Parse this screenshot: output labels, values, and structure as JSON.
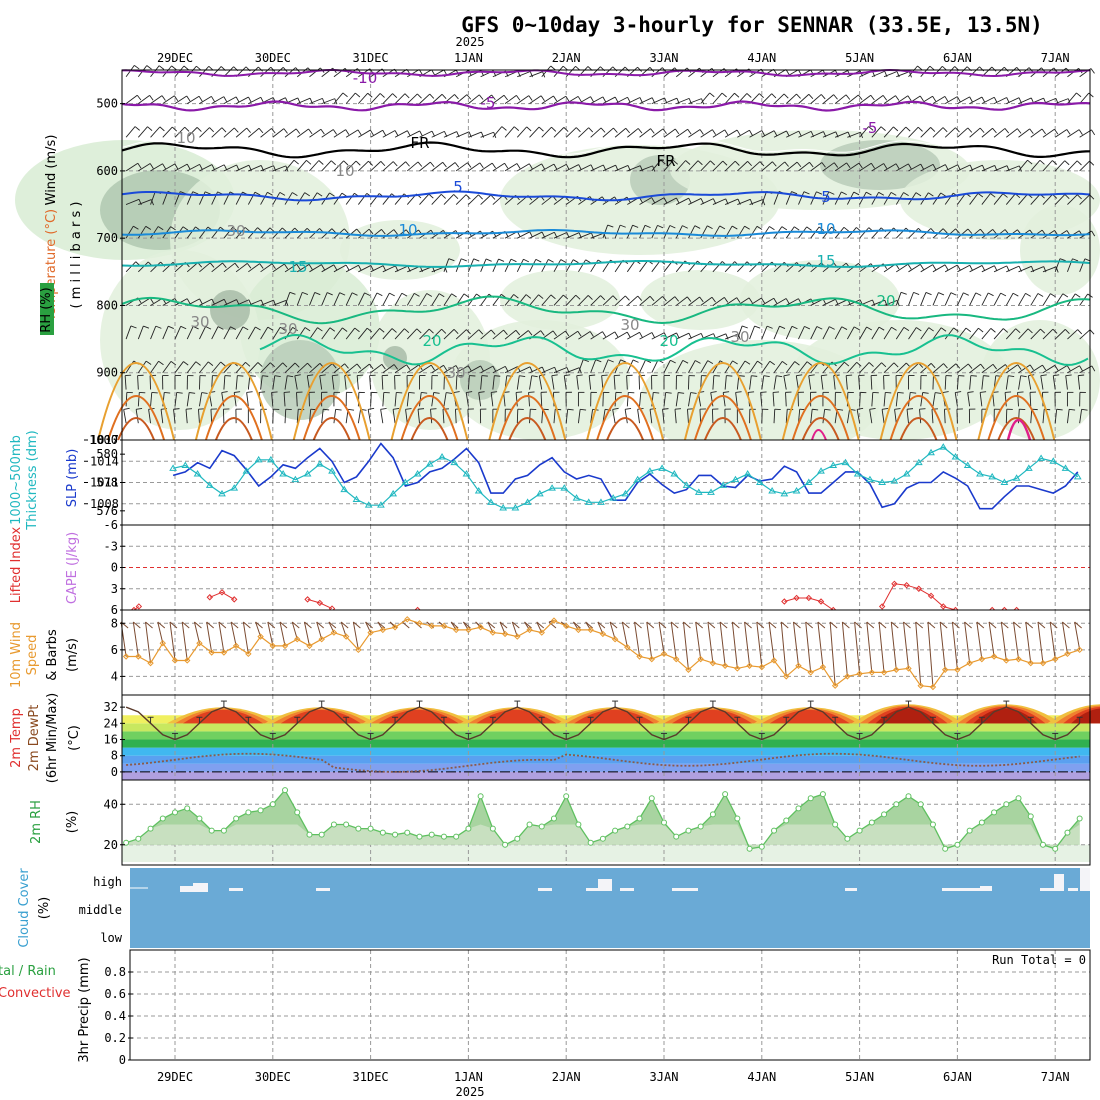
{
  "title": "GFS 0~10day 3-hourly for SENNAR (33.5E, 13.5N)",
  "year": "2025",
  "dates": [
    "29DEC",
    "30DEC",
    "31DEC",
    "1JAN",
    "2JAN",
    "3JAN",
    "4JAN",
    "5JAN",
    "6JAN",
    "7JAN"
  ],
  "panels": {
    "upper": {
      "labels": {
        "wind": "Wind (m/s)",
        "temperature": "Temperature (°C)",
        "rh": "RH (%)",
        "millibars": "( m i l l i b a r s )"
      },
      "yticks": [
        "500",
        "600",
        "700",
        "800",
        "900",
        "1000"
      ],
      "contour_labels": [
        "-10",
        "-5",
        "-5",
        "FR",
        "FR",
        "5",
        "5",
        "10",
        "10",
        "15",
        "15",
        "20",
        "20",
        "20",
        "10",
        "10",
        "30",
        "30",
        "30",
        "30",
        "30",
        "30"
      ]
    },
    "slp": {
      "labels": {
        "thickness": "1000~500mb",
        "thickness2": "Thickness (dm)",
        "slp": "SLP (mb)"
      },
      "left_ticks": [
        "580",
        "578",
        "576"
      ],
      "right_ticks": [
        "1017",
        "1014",
        "1011",
        "1008"
      ]
    },
    "cape": {
      "labels": {
        "lifted": "Lifted Index",
        "cape": "CAPE (J/kg)"
      },
      "yticks": [
        "-6",
        "-3",
        "0",
        "3",
        "6"
      ]
    },
    "wind10": {
      "labels": {
        "wind": "10m Wind",
        "speed": "Speed",
        "barbs": "& Barbs",
        "units": "(m/s)"
      },
      "yticks": [
        "8",
        "6",
        "4"
      ]
    },
    "temp2m": {
      "labels": {
        "temp": "2m Temp",
        "dew": "2m DewPt",
        "minmax": "(6hr Min/Max)",
        "units": "(°C)"
      },
      "yticks": [
        "32",
        "24",
        "16",
        "8",
        "0"
      ]
    },
    "rh2m": {
      "labels": {
        "rh": "2m RH",
        "units": "(%)"
      },
      "yticks": [
        "40",
        "20"
      ]
    },
    "cloud": {
      "labels": {
        "cloud": "Cloud Cover",
        "units": "(%)"
      },
      "yticks": [
        "high",
        "middle",
        "low"
      ]
    },
    "precip": {
      "labels": {
        "total": "tal / Rain",
        "conv": "Convective",
        "precip": "3hr Precip (mm)"
      },
      "yticks": [
        "0.8",
        "0.6",
        "0.4",
        "0.2",
        "0"
      ],
      "run_total": "Run Total = 0"
    }
  },
  "colors": {
    "blue_slp": "#1a3acc",
    "cyan_thick": "#20b8c0",
    "orange_wind": "#e89a30",
    "cloud": "#6aaad6",
    "rh_green": "#5fc060",
    "lifted": "#e03030"
  },
  "chart_data": [
    {
      "type": "line",
      "name": "slp",
      "x_days": [
        0,
        0.125,
        0.25,
        0.375,
        0.5,
        0.625,
        0.75,
        0.875,
        1,
        1.125,
        1.25,
        1.375,
        1.5,
        1.625,
        1.75,
        1.875,
        2,
        2.125,
        2.25,
        2.375,
        2.5,
        2.625,
        2.75,
        2.875,
        3,
        3.125,
        3.25,
        3.375,
        3.5,
        3.625,
        3.75,
        3.875,
        4,
        4.125,
        4.25,
        4.375,
        4.5,
        4.625,
        4.75,
        4.875,
        5,
        5.125,
        5.25,
        5.375,
        5.5,
        5.625,
        5.75,
        5.875,
        6,
        6.125,
        6.25,
        6.375,
        6.5,
        6.625,
        6.75,
        6.875,
        7,
        7.125,
        7.25,
        7.375,
        7.5,
        7.625,
        7.75,
        7.875,
        8,
        8.125,
        8.25,
        8.375,
        8.5,
        8.625,
        8.75,
        8.875,
        9,
        9.125,
        9.25
      ],
      "series": [
        {
          "values": [
            1012,
            1012.5,
            1013.8,
            1013,
            1015.5,
            1014.8,
            1012.8,
            1010.5,
            1011.8,
            1013.5,
            1013,
            1014.5,
            1015.8,
            1014,
            1011,
            1011.8,
            1014,
            1016.5,
            1014.5,
            1010.5,
            1011,
            1012.5,
            1013,
            1014.3,
            1015.8,
            1013.8,
            1009.5,
            1009.5,
            1011.5,
            1012,
            1013.5,
            1014.5,
            1012.5,
            1011.5,
            1012,
            1011.5,
            1008.5,
            1008.5,
            1011,
            1012.2,
            1010.7,
            1009.5,
            1010,
            1012,
            1012,
            1010.5,
            1010.3,
            1012,
            1011.2,
            1011.5,
            1013.3,
            1012.5,
            1009.5,
            1009.5,
            1011,
            1012.5,
            1012.5,
            1010.8,
            1007.5,
            1008,
            1010.2,
            1011,
            1011,
            1012.5,
            1011.6,
            1010.5,
            1007.3,
            1007.3,
            1009,
            1010.5,
            1010.5,
            1010,
            1009.5,
            1010.5,
            1012.5
          ]
        },
        {
          "values": [
            579,
            579.2,
            578.6,
            577.8,
            577.2,
            577.6,
            578.8,
            579.6,
            579.6,
            578.6,
            578.2,
            578.6,
            579.3,
            578.8,
            577.5,
            576.8,
            576.4,
            576.4,
            577.2,
            578,
            578.6,
            579.3,
            579.8,
            579.4,
            578.6,
            577.4,
            576.6,
            576.2,
            576.2,
            576.6,
            577.2,
            577.6,
            577.6,
            576.9,
            576.6,
            576.6,
            576.9,
            577.2,
            578.2,
            578.8,
            579,
            578.6,
            577.8,
            577.3,
            577.3,
            577.8,
            578.2,
            578.6,
            578,
            577.4,
            577.2,
            577.4,
            578,
            578.8,
            579.2,
            579.4,
            578.6,
            578.2,
            578,
            578.1,
            578.6,
            579.4,
            580.1,
            580.5,
            579.8,
            579.2,
            578.6,
            578.4,
            578,
            578.3,
            579,
            579.7,
            579.5,
            579,
            578.4
          ]
        }
      ],
      "names": [
        "SLP",
        "Thickness"
      ]
    },
    {
      "type": "line",
      "name": "lifted_index",
      "segments": [
        {
          "x_days": [
            -0.4,
            -0.35
          ],
          "values": [
            6,
            5.5
          ]
        },
        {
          "x_days": [
            0.375,
            0.5,
            0.625
          ],
          "values": [
            4.2,
            3.5,
            4.5
          ]
        },
        {
          "x_days": [
            1.375,
            1.5,
            1.625
          ],
          "values": [
            4.5,
            5,
            5.8
          ]
        },
        {
          "x_days": [
            2.5
          ],
          "values": [
            6
          ]
        },
        {
          "x_days": [
            6.25,
            6.375,
            6.5,
            6.625,
            6.75
          ],
          "values": [
            4.8,
            4.3,
            4.3,
            4.8,
            6
          ]
        },
        {
          "x_days": [
            7.25,
            7.375,
            7.5,
            7.625,
            7.75,
            7.875,
            8
          ],
          "values": [
            5.5,
            2.3,
            2.5,
            3,
            4,
            5.5,
            6
          ]
        },
        {
          "x_days": [
            8.375,
            8.5,
            8.625
          ],
          "values": [
            6,
            6,
            6
          ]
        }
      ]
    },
    {
      "type": "line",
      "name": "wind_speed_10m",
      "x_days": [
        -0.5,
        -0.375,
        -0.25,
        -0.125,
        0,
        0.125,
        0.25,
        0.375,
        0.5,
        0.625,
        0.75,
        0.875,
        1,
        1.125,
        1.25,
        1.375,
        1.5,
        1.625,
        1.75,
        1.875,
        2,
        2.125,
        2.25,
        2.375,
        2.5,
        2.625,
        2.75,
        2.875,
        3,
        3.125,
        3.25,
        3.375,
        3.5,
        3.625,
        3.75,
        3.875,
        4,
        4.125,
        4.25,
        4.375,
        4.5,
        4.625,
        4.75,
        4.875,
        5,
        5.125,
        5.25,
        5.375,
        5.5,
        5.625,
        5.75,
        5.875,
        6,
        6.125,
        6.25,
        6.375,
        6.5,
        6.625,
        6.75,
        6.875,
        7,
        7.125,
        7.25,
        7.375,
        7.5,
        7.625,
        7.75,
        7.875,
        8,
        8.125,
        8.25,
        8.375,
        8.5,
        8.625,
        8.75,
        8.875,
        9,
        9.125,
        9.25
      ],
      "values": [
        5.5,
        5.5,
        5,
        6.5,
        5.2,
        5.2,
        6.5,
        5.8,
        5.8,
        6.3,
        5.7,
        7,
        6.3,
        6.3,
        6.8,
        6.3,
        6.8,
        7.3,
        7,
        6,
        7.3,
        7.5,
        7.7,
        8.3,
        8,
        7.8,
        7.8,
        7.5,
        7.5,
        7.7,
        7.3,
        7.2,
        7,
        7.5,
        7.3,
        8.2,
        7.8,
        7.5,
        7.5,
        7.2,
        6.8,
        6.2,
        5.5,
        5.3,
        5.7,
        5.3,
        4.5,
        5.3,
        5,
        4.8,
        4.6,
        4.8,
        4.7,
        5.2,
        4,
        4.8,
        4.3,
        4.7,
        3.3,
        4,
        4.2,
        4.3,
        4.3,
        4.5,
        4.6,
        3.3,
        3.2,
        4.5,
        4.5,
        5,
        5.3,
        5.5,
        5.2,
        5.3,
        5,
        5,
        5.3,
        5.7,
        6
      ]
    },
    {
      "type": "area",
      "name": "rh_2m",
      "x_days": [
        -0.5,
        -0.375,
        -0.25,
        -0.125,
        0,
        0.125,
        0.25,
        0.375,
        0.5,
        0.625,
        0.75,
        0.875,
        1,
        1.125,
        1.25,
        1.375,
        1.5,
        1.625,
        1.75,
        1.875,
        2,
        2.125,
        2.25,
        2.375,
        2.5,
        2.625,
        2.75,
        2.875,
        3,
        3.125,
        3.25,
        3.375,
        3.5,
        3.625,
        3.75,
        3.875,
        4,
        4.125,
        4.25,
        4.375,
        4.5,
        4.625,
        4.75,
        4.875,
        5,
        5.125,
        5.25,
        5.375,
        5.5,
        5.625,
        5.75,
        5.875,
        6,
        6.125,
        6.25,
        6.375,
        6.5,
        6.625,
        6.75,
        6.875,
        7,
        7.125,
        7.25,
        7.375,
        7.5,
        7.625,
        7.75,
        7.875,
        8,
        8.125,
        8.25,
        8.375,
        8.5,
        8.625,
        8.75,
        8.875,
        9,
        9.125,
        9.25
      ],
      "values": [
        21,
        23,
        28,
        33,
        36,
        38,
        33,
        27,
        27,
        33,
        36,
        37,
        40,
        47,
        36,
        25,
        25,
        30,
        30,
        28,
        28,
        26,
        25,
        26,
        24,
        25,
        24,
        24,
        28,
        44,
        28,
        20,
        23,
        30,
        29,
        33,
        44,
        30,
        21,
        23,
        27,
        29,
        33,
        43,
        31,
        24,
        27,
        29,
        35,
        45,
        33,
        18,
        19,
        27,
        32,
        38,
        43,
        45,
        30,
        23,
        27,
        31,
        35,
        40,
        44,
        40,
        30,
        18,
        20,
        27,
        31,
        36,
        40,
        43,
        34,
        20,
        18,
        26,
        33
      ]
    }
  ]
}
